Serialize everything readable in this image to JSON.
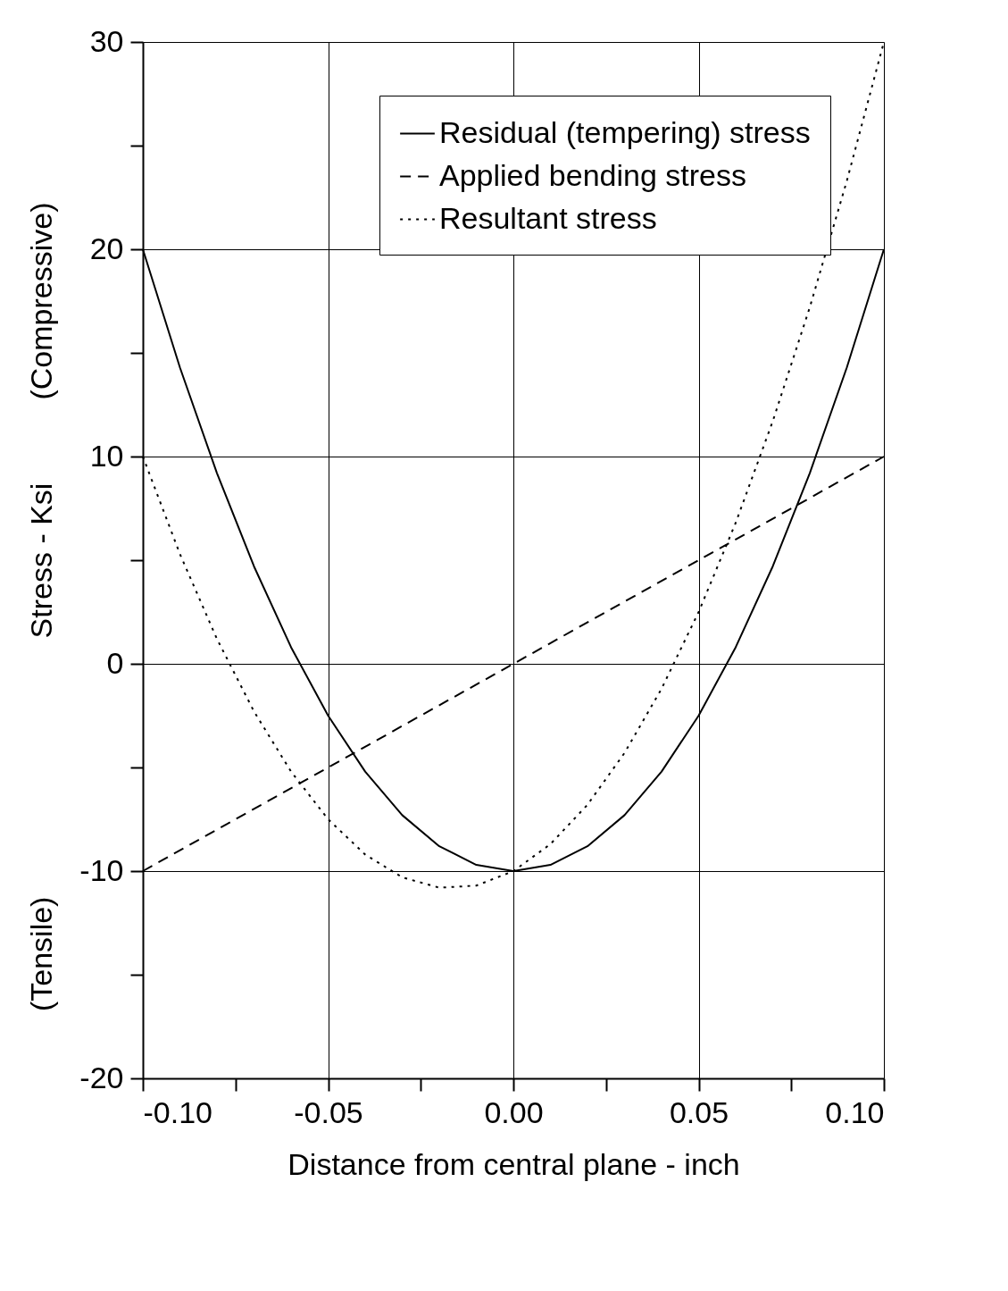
{
  "chart_data": {
    "type": "line",
    "xlabel": "Distance from central plane - inch",
    "ylabel": "Stress - Ksi",
    "annotations": [
      "(Compressive)",
      "(Tensile)"
    ],
    "series": [
      {
        "name": "Residual (tempering) stress",
        "color": "#000000",
        "line_style": "solid",
        "x": [
          -0.1,
          -0.09,
          -0.08,
          -0.07,
          -0.06,
          -0.05,
          -0.04,
          -0.03,
          -0.02,
          -0.01,
          0,
          0.01,
          0.02,
          0.03,
          0.04,
          0.05,
          0.06,
          0.07,
          0.08,
          0.09,
          0.1
        ],
        "values": [
          20,
          14.3,
          9.2,
          4.7,
          0.8,
          -2.5,
          -5.2,
          -7.3,
          -8.8,
          -9.7,
          -10,
          -9.7,
          -8.8,
          -7.3,
          -5.2,
          -2.5,
          0.8,
          4.7,
          9.2,
          14.3,
          20
        ]
      },
      {
        "name": "Applied bending stress",
        "color": "#000000",
        "line_style": "dashed",
        "x": [
          -0.1,
          0.1
        ],
        "values": [
          -10,
          10
        ]
      },
      {
        "name": "Resultant stress",
        "color": "#000000",
        "line_style": "dotted",
        "x": [
          -0.1,
          -0.09,
          -0.08,
          -0.07,
          -0.06,
          -0.05,
          -0.04,
          -0.03,
          -0.02,
          -0.01,
          0,
          0.01,
          0.02,
          0.03,
          0.04,
          0.05,
          0.06,
          0.07,
          0.08,
          0.09,
          0.1
        ],
        "values": [
          10,
          5.3,
          1.2,
          -2.3,
          -5.2,
          -7.5,
          -9.2,
          -10.3,
          -10.8,
          -10.7,
          -10,
          -8.7,
          -6.8,
          -4.3,
          -1.2,
          2.5,
          6.8,
          11.7,
          17.2,
          23.3,
          30
        ]
      }
    ],
    "xlim": [
      -0.1,
      0.1
    ],
    "xticks": [
      {
        "value": -0.1,
        "label": "-0.10"
      },
      {
        "value": -0.075,
        "label": null
      },
      {
        "value": -0.05,
        "label": "-0.05"
      },
      {
        "value": -0.025,
        "label": null
      },
      {
        "value": 0,
        "label": "0.00"
      },
      {
        "value": 0.025,
        "label": null
      },
      {
        "value": 0.05,
        "label": "0.05"
      },
      {
        "value": 0.075,
        "label": null
      },
      {
        "value": 0.1,
        "label": "0.10"
      }
    ],
    "ylim": [
      -20,
      30
    ],
    "yticks": [
      -20,
      {
        "value": -15,
        "label": null
      },
      -10,
      {
        "value": -5,
        "label": null
      },
      0,
      {
        "value": 5,
        "label": null
      },
      10,
      {
        "value": 15,
        "label": null
      },
      20,
      {
        "value": 25,
        "label": null
      },
      30
    ],
    "grid": true,
    "legend": "top right",
    "marker": "none"
  }
}
